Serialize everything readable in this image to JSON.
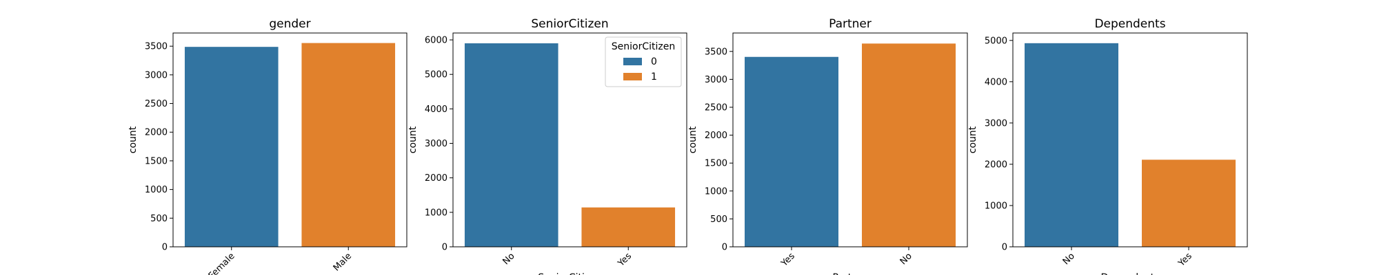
{
  "chart_data": [
    {
      "type": "bar",
      "title": "gender",
      "xlabel": "",
      "ylabel": "count",
      "categories": [
        "Female",
        "Male"
      ],
      "values": [
        3488,
        3555
      ],
      "bar_colors": [
        "#3274a1",
        "#e1812c"
      ],
      "ylim": [
        0,
        3730
      ],
      "yticks": [
        0,
        500,
        1000,
        1500,
        2000,
        2500,
        3000,
        3500
      ],
      "xtick_rotation": 45
    },
    {
      "type": "bar",
      "title": "SeniorCitizen",
      "xlabel": "SeniorCitizen",
      "ylabel": "count",
      "categories": [
        "No",
        "Yes"
      ],
      "values": [
        5901,
        1142
      ],
      "bar_colors": [
        "#3274a1",
        "#e1812c"
      ],
      "ylim": [
        0,
        6200
      ],
      "yticks": [
        0,
        1000,
        2000,
        3000,
        4000,
        5000,
        6000
      ],
      "xtick_rotation": 45,
      "legend": {
        "title": "SeniorCitizen",
        "placement": "top-right",
        "entries": [
          {
            "label": "0",
            "color": "#3274a1"
          },
          {
            "label": "1",
            "color": "#e1812c"
          }
        ]
      }
    },
    {
      "type": "bar",
      "title": "Partner",
      "xlabel": "Partner",
      "ylabel": "count",
      "categories": [
        "Yes",
        "No"
      ],
      "values": [
        3402,
        3641
      ],
      "bar_colors": [
        "#3274a1",
        "#e1812c"
      ],
      "ylim": [
        0,
        3830
      ],
      "yticks": [
        0,
        500,
        1000,
        1500,
        2000,
        2500,
        3000,
        3500
      ],
      "xtick_rotation": 45
    },
    {
      "type": "bar",
      "title": "Dependents",
      "xlabel": "Dependents",
      "ylabel": "count",
      "categories": [
        "No",
        "Yes"
      ],
      "values": [
        4933,
        2110
      ],
      "bar_colors": [
        "#3274a1",
        "#e1812c"
      ],
      "ylim": [
        0,
        5180
      ],
      "yticks": [
        0,
        1000,
        2000,
        3000,
        4000,
        5000
      ],
      "xtick_rotation": 45
    }
  ]
}
